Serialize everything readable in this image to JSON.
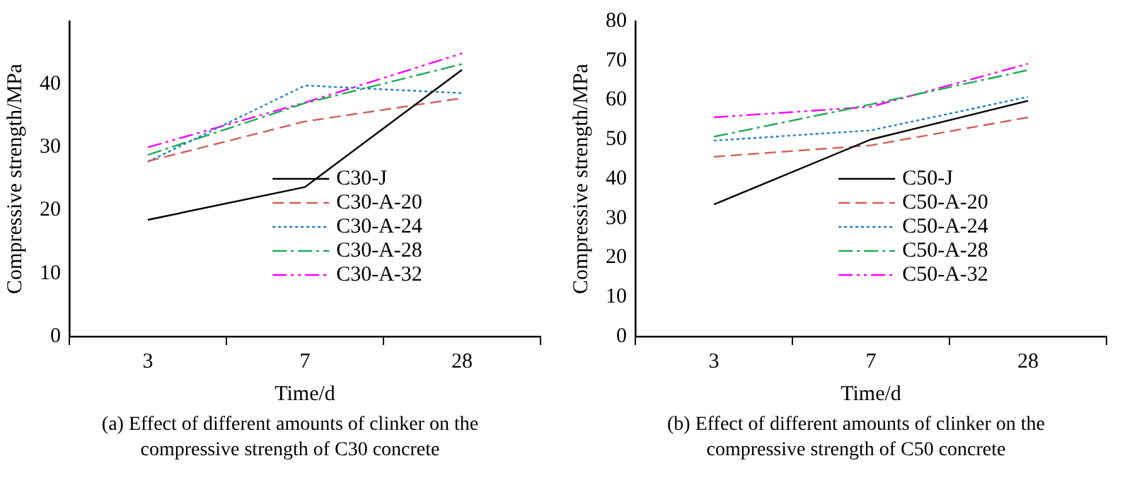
{
  "chart_data": [
    {
      "type": "line",
      "xlabel": "Time/d",
      "ylabel": "Compressive strength/MPa",
      "annotations": [
        "(a) Effect of different amounts of clinker on the compressive strength of C30 concrete"
      ],
      "categories": [
        "3",
        "7",
        "28"
      ],
      "ylim": [
        0,
        50
      ],
      "yticks": [
        0,
        10,
        20,
        30,
        40
      ],
      "grid": false,
      "legend": "bottom",
      "marker": "none",
      "series": [
        {
          "name": "C30-J",
          "color": "#000000",
          "line_style": "solid",
          "values": [
            18.5,
            23.7,
            42.3
          ]
        },
        {
          "name": "C30-A-20",
          "color": "#d0605a",
          "line_style": "dashed",
          "values": [
            27.8,
            34.1,
            37.8
          ]
        },
        {
          "name": "C30-A-24",
          "color": "#1f7fd0",
          "line_style": "dotted",
          "values": [
            27.7,
            39.8,
            38.6
          ]
        },
        {
          "name": "C30-A-28",
          "color": "#22aa55",
          "line_style": "dashed",
          "values": [
            28.8,
            37.0,
            43.2
          ]
        },
        {
          "name": "C30-A-32",
          "color": "#ff00ff",
          "line_style": "dashed",
          "values": [
            30.0,
            37.1,
            44.9
          ]
        }
      ]
    },
    {
      "type": "line",
      "xlabel": "Time/d",
      "ylabel": "Compressive strength/MPa",
      "annotations": [
        "(b) Effect of different amounts of clinker on the compressive strength of C50 concrete"
      ],
      "categories": [
        "3",
        "7",
        "28"
      ],
      "ylim": [
        0,
        80
      ],
      "yticks": [
        0,
        10,
        20,
        30,
        40,
        50,
        60,
        70,
        80
      ],
      "grid": false,
      "legend": "bottom",
      "marker": "none",
      "series": [
        {
          "name": "C50-J",
          "color": "#000000",
          "line_style": "solid",
          "values": [
            33.5,
            50.0,
            59.8
          ]
        },
        {
          "name": "C50-A-20",
          "color": "#d0605a",
          "line_style": "dashed",
          "values": [
            45.6,
            48.5,
            55.6
          ]
        },
        {
          "name": "C50-A-24",
          "color": "#1f7fd0",
          "line_style": "dotted",
          "values": [
            49.7,
            52.3,
            60.8
          ]
        },
        {
          "name": "C50-A-28",
          "color": "#22aa55",
          "line_style": "dashed",
          "values": [
            50.7,
            58.9,
            67.6
          ]
        },
        {
          "name": "C50-A-32",
          "color": "#ff00ff",
          "line_style": "dashed",
          "values": [
            55.6,
            58.3,
            69.2
          ]
        }
      ]
    }
  ]
}
